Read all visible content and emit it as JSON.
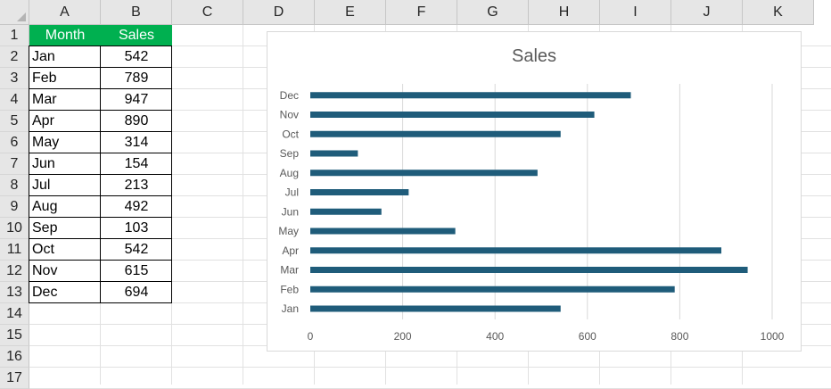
{
  "sheet": {
    "columns": [
      "A",
      "B",
      "C",
      "D",
      "E",
      "F",
      "G",
      "H",
      "I",
      "J",
      "K"
    ],
    "rows": [
      "1",
      "2",
      "3",
      "4",
      "5",
      "6",
      "7",
      "8",
      "9",
      "10",
      "11",
      "12",
      "13",
      "14",
      "15",
      "16",
      "17"
    ],
    "table": {
      "headers": [
        "Month",
        "Sales"
      ],
      "rows": [
        [
          "Jan",
          "542"
        ],
        [
          "Feb",
          "789"
        ],
        [
          "Mar",
          "947"
        ],
        [
          "Apr",
          "890"
        ],
        [
          "May",
          "314"
        ],
        [
          "Jun",
          "154"
        ],
        [
          "Jul",
          "213"
        ],
        [
          "Aug",
          "492"
        ],
        [
          "Sep",
          "103"
        ],
        [
          "Oct",
          "542"
        ],
        [
          "Nov",
          "615"
        ],
        [
          "Dec",
          "694"
        ]
      ],
      "header_color": "#00b050"
    }
  },
  "chart_data": {
    "type": "bar",
    "orientation": "horizontal",
    "title": "Sales",
    "categories": [
      "Jan",
      "Feb",
      "Mar",
      "Apr",
      "May",
      "Jun",
      "Jul",
      "Aug",
      "Sep",
      "Oct",
      "Nov",
      "Dec"
    ],
    "values": [
      542,
      789,
      947,
      890,
      314,
      154,
      213,
      492,
      103,
      542,
      615,
      694
    ],
    "xlim": [
      0,
      1000
    ],
    "xticks": [
      "0",
      "200",
      "400",
      "600",
      "800",
      "1000"
    ],
    "grid": true,
    "bar_color": "#1f5c7a"
  }
}
